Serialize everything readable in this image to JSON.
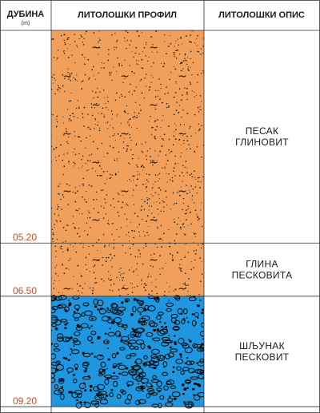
{
  "header": {
    "depth_title": "ДУБИНА",
    "depth_unit": "(m)",
    "profile_title": "ЛИТОЛОШКИ ПРОФИЛ",
    "description_title": "ЛИТОЛОШКИ ОПИС"
  },
  "layers": [
    {
      "id": "pesak",
      "top": 0.0,
      "bottom": 5.2,
      "depth_label": "05.20",
      "description": [
        "ПЕСАК",
        "ГЛИНОВИТ"
      ],
      "pattern": "sand-clay",
      "fill": "#f0a05a"
    },
    {
      "id": "glina",
      "top": 5.2,
      "bottom": 6.5,
      "depth_label": "06.50",
      "description": [
        "ГЛИНА",
        "ПЕСКОВИТА"
      ],
      "pattern": "sand-clay",
      "fill": "#f0a05a"
    },
    {
      "id": "sljunak",
      "top": 6.5,
      "bottom": 9.2,
      "depth_label": "09.20",
      "description": [
        "ШЉУНАК",
        "ПЕСКОВИТ"
      ],
      "pattern": "gravel",
      "fill": "#1e96e0"
    }
  ],
  "colors": {
    "depth_text": "#c0502a",
    "lines": "#333333"
  }
}
